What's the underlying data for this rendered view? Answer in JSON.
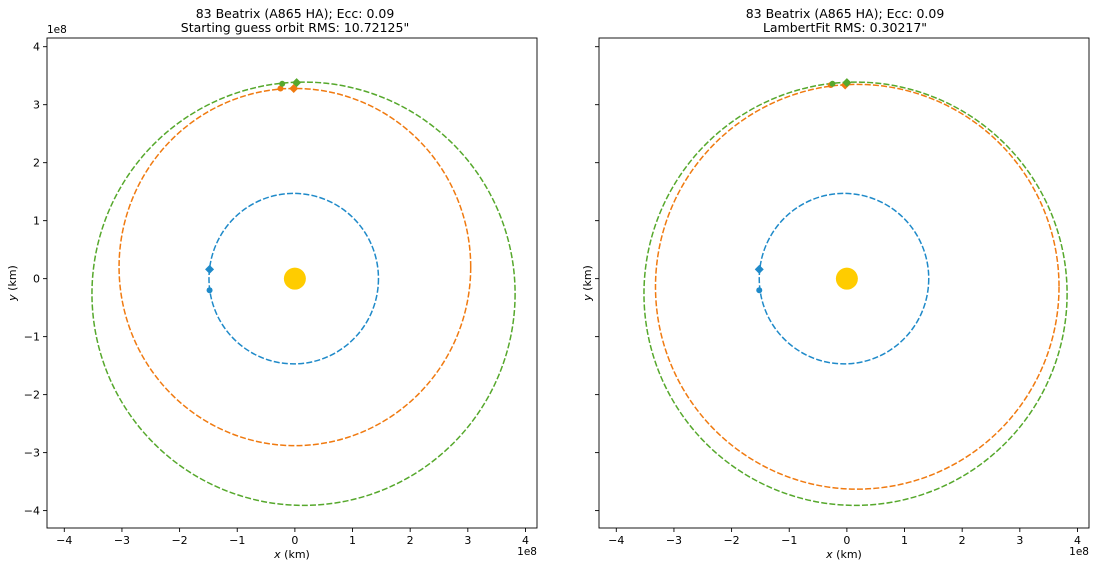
{
  "chart_data": [
    {
      "type": "line",
      "title_line1": "83 Beatrix (A865 HA); Ecc: 0.09",
      "title_line2": "Starting guess orbit RMS: 10.72125\"",
      "xlabel_var": "x",
      "xlabel_unit": " (km)",
      "ylabel_var": "y",
      "ylabel_unit": " (km)",
      "x_offset_text": "1e8",
      "y_offset_text": "1e8",
      "xlim": [
        -4.3,
        4.2
      ],
      "ylim": [
        -4.3,
        4.15
      ],
      "xticks": [
        -4,
        -3,
        -2,
        -1,
        0,
        1,
        2,
        3,
        4
      ],
      "xtick_labels": [
        "−4",
        "−3",
        "−2",
        "−1",
        "0",
        "1",
        "2",
        "3",
        "4"
      ],
      "yticks": [
        -4,
        -3,
        -2,
        -1,
        0,
        1,
        2,
        3,
        4
      ],
      "ytick_labels": [
        "−4",
        "−3",
        "−2",
        "−1",
        "0",
        "1",
        "2",
        "3",
        "4"
      ],
      "show_ytick_labels": true,
      "grid": false,
      "sun": {
        "x": 0,
        "y": 0,
        "color": "#FFCC00"
      },
      "series": [
        {
          "role": "earth",
          "color": "#1F8AC9",
          "orbit": {
            "cx": -0.02,
            "cy": 0.0,
            "rx": 1.47,
            "ry": 1.47
          },
          "markers": [
            {
              "x": -1.48,
              "y": 0.16,
              "shape": "diamond"
            },
            {
              "x": -1.48,
              "y": -0.2,
              "shape": "circle"
            }
          ]
        },
        {
          "role": "starting-guess-orbit",
          "color": "#F07A10",
          "orbit": {
            "cx": 0.0,
            "cy": 0.2,
            "rx": 3.05,
            "ry": 3.08
          },
          "markers": [
            {
              "x": -0.02,
              "y": 3.28,
              "shape": "diamond"
            },
            {
              "x": -0.25,
              "y": 3.28,
              "shape": "circle"
            }
          ]
        },
        {
          "role": "reference-orbit",
          "color": "#56A82C",
          "orbit": {
            "cx": 0.15,
            "cy": -0.26,
            "rx": 3.67,
            "ry": 3.65
          },
          "markers": [
            {
              "x": 0.03,
              "y": 3.38,
              "shape": "diamond"
            },
            {
              "x": -0.22,
              "y": 3.36,
              "shape": "circle"
            }
          ]
        }
      ]
    },
    {
      "type": "line",
      "title_line1": "83 Beatrix (A865 HA); Ecc: 0.09",
      "title_line2": "LambertFit RMS: 0.30217\"",
      "xlabel_var": "x",
      "xlabel_unit": " (km)",
      "ylabel_var": "y",
      "ylabel_unit": " (km)",
      "x_offset_text": "1e8",
      "y_offset_text": "1e8",
      "xlim": [
        -4.3,
        4.2
      ],
      "ylim": [
        -4.3,
        4.15
      ],
      "xticks": [
        -4,
        -3,
        -2,
        -1,
        0,
        1,
        2,
        3,
        4
      ],
      "xtick_labels": [
        "−4",
        "−3",
        "−2",
        "−1",
        "0",
        "1",
        "2",
        "3",
        "4"
      ],
      "yticks": [
        -4,
        -3,
        -2,
        -1,
        0,
        1,
        2,
        3,
        4
      ],
      "ytick_labels": [],
      "show_ytick_labels": false,
      "grid": false,
      "sun": {
        "x": 0,
        "y": 0,
        "color": "#FFCC00"
      },
      "series": [
        {
          "role": "earth",
          "color": "#1F8AC9",
          "orbit": {
            "cx": -0.05,
            "cy": 0.0,
            "rx": 1.47,
            "ry": 1.47
          },
          "markers": [
            {
              "x": -1.52,
              "y": 0.16,
              "shape": "diamond"
            },
            {
              "x": -1.52,
              "y": -0.2,
              "shape": "circle"
            }
          ]
        },
        {
          "role": "lambertfit-orbit",
          "color": "#F07A10",
          "orbit": {
            "cx": 0.18,
            "cy": -0.14,
            "rx": 3.5,
            "ry": 3.49
          },
          "markers": [
            {
              "x": -0.03,
              "y": 3.34,
              "shape": "diamond"
            },
            {
              "x": -0.28,
              "y": 3.34,
              "shape": "circle"
            }
          ]
        },
        {
          "role": "reference-orbit",
          "color": "#56A82C",
          "orbit": {
            "cx": 0.15,
            "cy": -0.26,
            "rx": 3.67,
            "ry": 3.65
          },
          "markers": [
            {
              "x": 0.0,
              "y": 3.38,
              "shape": "diamond"
            },
            {
              "x": -0.25,
              "y": 3.36,
              "shape": "circle"
            }
          ]
        }
      ]
    }
  ]
}
